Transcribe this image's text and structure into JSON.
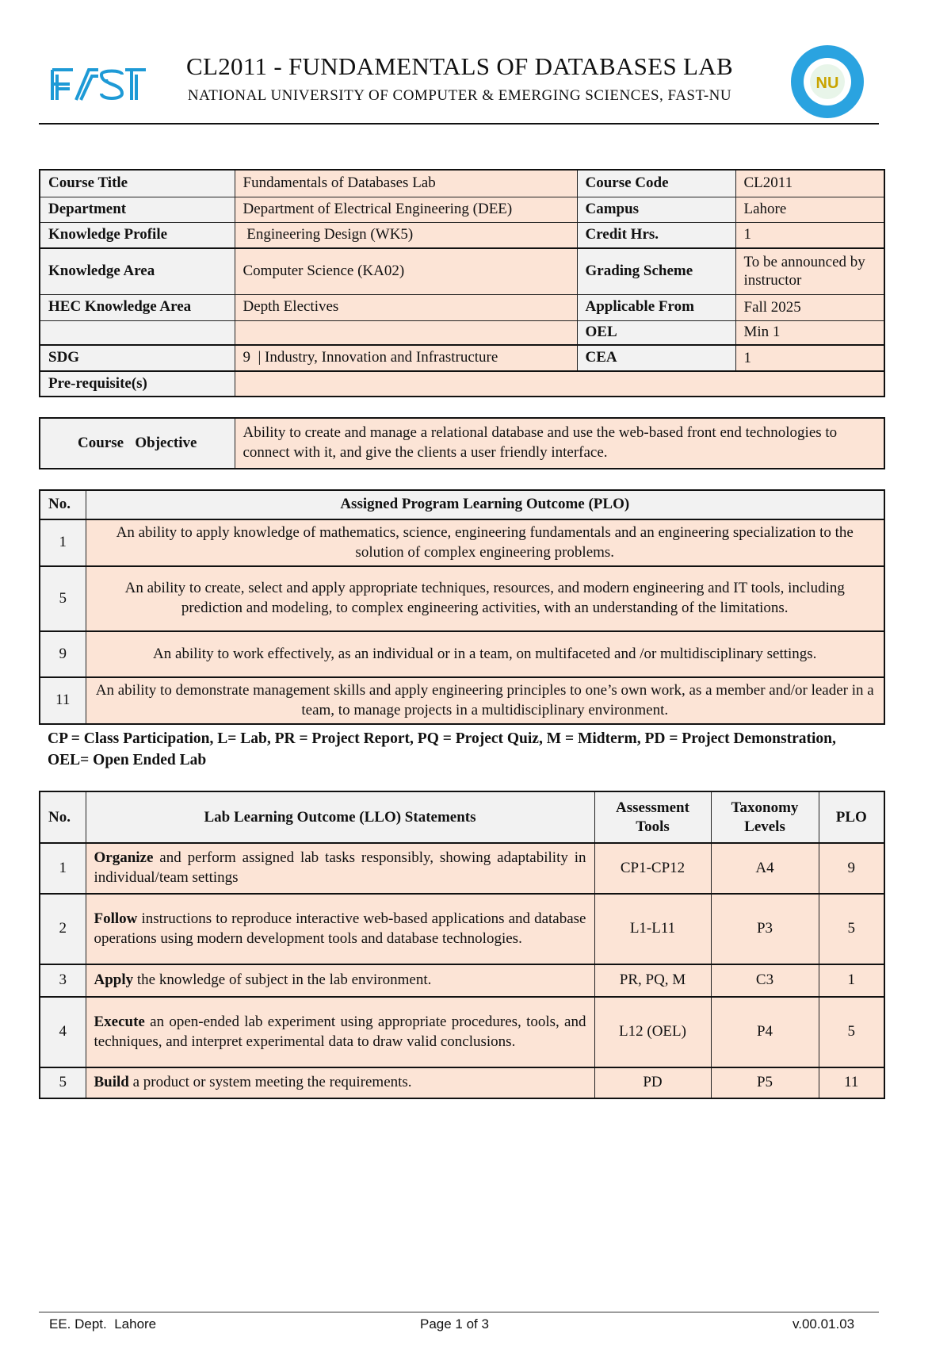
{
  "header": {
    "title": "CL2011 - FUNDAMENTALS OF DATABASES LAB",
    "subtitle": "NATIONAL UNIVERSITY OF COMPUTER & EMERGING SCIENCES, FAST-NU",
    "logo_text": "FAST",
    "seal_text": "NU"
  },
  "course_info": {
    "rows": [
      {
        "l1": "Course Title",
        "v1": "Fundamentals of Databases Lab",
        "l2": "Course Code",
        "v2": "CL2011"
      },
      {
        "l1": "Department",
        "v1": "Department of Electrical Engineering (DEE)",
        "l2": "Campus",
        "v2": "Lahore"
      },
      {
        "l1": "Knowledge Profile",
        "v1": " Engineering Design (WK5)",
        "l2": "Credit Hrs.",
        "v2": "1"
      },
      {
        "l1": "Knowledge Area",
        "v1": "Computer Science (KA02)",
        "l2": "Grading Scheme",
        "v2": "To be announced by instructor"
      },
      {
        "l1": "HEC Knowledge Area",
        "v1": "Depth Electives",
        "l2": "Applicable From",
        "v2": "Fall 2025"
      },
      {
        "l1": "",
        "v1": "",
        "l2": "OEL",
        "v2": "Min 1"
      },
      {
        "l1": "SDG",
        "v1": "9  | Industry, Innovation and Infrastructure",
        "l2": "CEA",
        "v2": "1"
      }
    ],
    "prereq_label": "Pre-requisite(s)",
    "prereq_value": ""
  },
  "objective": {
    "label": "Course   Objective",
    "text": "Ability to create and manage a relational database and use the web-based front end technologies to connect with it, and give the clients a user friendly interface."
  },
  "plo": {
    "headers": [
      "No.",
      "Assigned Program Learning Outcome (PLO)"
    ],
    "rows": [
      {
        "no": "1",
        "text": "An ability to apply knowledge of mathematics, science, engineering fundamentals and an engineering specialization to the solution of complex engineering problems."
      },
      {
        "no": "5",
        "text": "An ability to create, select and apply appropriate techniques, resources, and modern engineering and IT tools, including prediction and modeling, to complex engineering activities, with an understanding of the limitations."
      },
      {
        "no": "9",
        "text": "An ability to work effectively, as an individual or in a team, on multifaceted and /or multidisciplinary settings."
      },
      {
        "no": "11",
        "text": "An ability to demonstrate management skills and apply engineering principles to one’s own work, as a member and/or leader in a team, to manage projects in a multidisciplinary environment."
      }
    ]
  },
  "legend_note": "CP = Class Participation, L= Lab, PR = Project Report, PQ = Project Quiz, M = Midterm, PD = Project Demonstration, OEL= Open Ended Lab",
  "llo": {
    "headers": [
      "No.",
      "Lab Learning Outcome (LLO) Statements",
      "Assessment Tools",
      "Taxonomy Levels",
      "PLO"
    ],
    "rows": [
      {
        "no": "1",
        "verb": "Organize",
        "text": " and perform assigned lab tasks responsibly, showing adaptability in individual/team settings",
        "tools": "CP1-CP12",
        "tax": "A4",
        "plo": "9"
      },
      {
        "no": "2",
        "verb": "Follow",
        "text": " instructions to reproduce interactive web-based applications and database operations using modern development tools and database technologies.",
        "tools": "L1-L11",
        "tax": "P3",
        "plo": "5"
      },
      {
        "no": "3",
        "verb": "Apply",
        "text": " the knowledge of subject in the lab environment.",
        "tools": "PR, PQ, M",
        "tax": "C3",
        "plo": "1"
      },
      {
        "no": "4",
        "verb": "Execute",
        "text": " an open-ended lab experiment using appropriate procedures, tools, and techniques, and interpret experimental data to draw valid conclusions.",
        "tools": "L12 (OEL)",
        "tax": "P4",
        "plo": "5"
      },
      {
        "no": "5",
        "verb": "Build",
        "text": " a product or system meeting the requirements.",
        "tools": "PD",
        "tax": "P5",
        "plo": "11"
      }
    ]
  },
  "footer": {
    "left": "EE. Dept.  Lahore",
    "center": "Page 1 of 3",
    "right": "v.00.01.03"
  },
  "colors": {
    "label_bg": "#f2f2f2",
    "value_bg": "#fce4d6",
    "logo_blue": "#1e9ad6"
  }
}
